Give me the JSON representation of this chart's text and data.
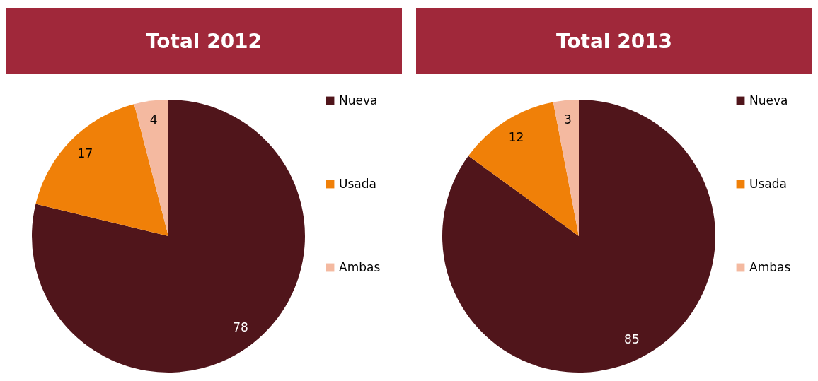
{
  "chart_data": [
    {
      "type": "pie",
      "title": "Total 2012",
      "categories": [
        "Nueva",
        "Usada",
        "Ambas"
      ],
      "values": [
        78,
        17,
        4
      ],
      "colors": [
        "#50151b",
        "#f08008",
        "#f4b9a0"
      ],
      "data_labels": true,
      "legend": "right"
    },
    {
      "type": "pie",
      "title": "Total 2013",
      "categories": [
        "Nueva",
        "Usada",
        "Ambas"
      ],
      "values": [
        85,
        12,
        3
      ],
      "colors": [
        "#50151b",
        "#f08008",
        "#f4b9a0"
      ],
      "data_labels": true,
      "legend": "right"
    }
  ]
}
